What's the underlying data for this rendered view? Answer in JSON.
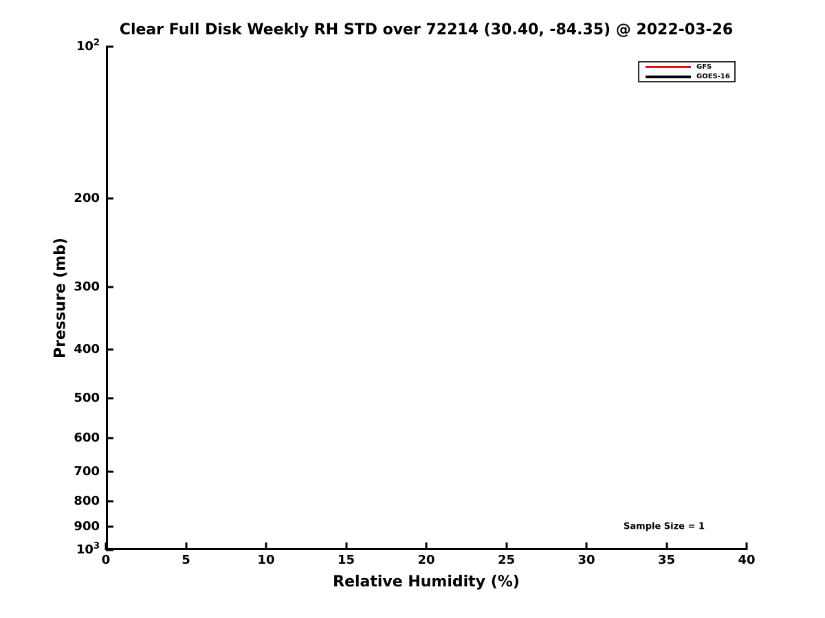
{
  "chart_data": {
    "type": "line",
    "title": "Clear Full Disk Weekly RH STD over 72214 (30.40, -84.35) @ 2022-03-26",
    "xlabel": "Relative Humidity (%)",
    "ylabel": "Pressure (mb)",
    "xlim": [
      0,
      40
    ],
    "ylim": [
      100,
      1000
    ],
    "y_scale": "log",
    "y_inverted": "100 mb at top, 1000 mb at bottom",
    "grid": false,
    "x_ticks": [
      0,
      5,
      10,
      15,
      20,
      25,
      30,
      35,
      40
    ],
    "y_ticks": [
      {
        "value": 100,
        "base": "10",
        "sup": "2"
      },
      {
        "value": 200,
        "label": "200"
      },
      {
        "value": 300,
        "label": "300"
      },
      {
        "value": 400,
        "label": "400"
      },
      {
        "value": 500,
        "label": "500"
      },
      {
        "value": 600,
        "label": "600"
      },
      {
        "value": 700,
        "label": "700"
      },
      {
        "value": 800,
        "label": "800"
      },
      {
        "value": 900,
        "label": "900"
      },
      {
        "value": 1000,
        "base": "10",
        "sup": "3"
      }
    ],
    "legend": {
      "position": "upper right",
      "entries": [
        {
          "label": "GFS",
          "color": "#dd1212"
        },
        {
          "label": "GOES-16",
          "color": "#000000"
        }
      ]
    },
    "annotation": {
      "text": "Sample Size = 1",
      "x": 34.85,
      "y": 900
    },
    "series": [
      {
        "name": "GFS",
        "color": "#dd1212",
        "points": []
      },
      {
        "name": "GOES-16",
        "color": "#000000",
        "points": []
      }
    ]
  }
}
